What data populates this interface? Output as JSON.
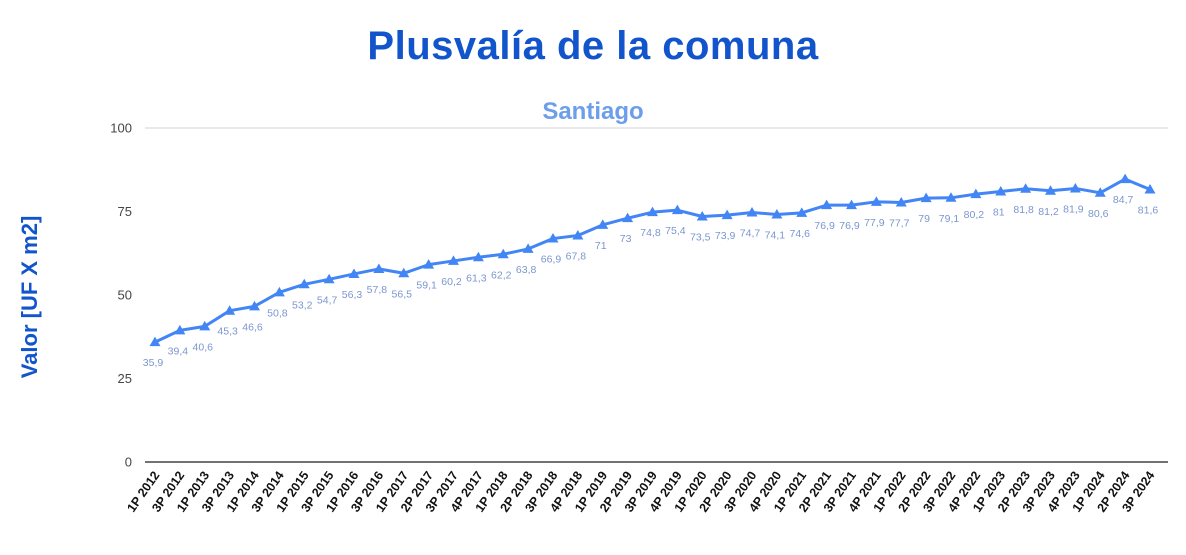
{
  "chart_data": {
    "type": "line",
    "title": "Plusvalía de la comuna",
    "subtitle": "Santiago",
    "xlabel": "",
    "ylabel": "Valor  [UF X m2]",
    "ylim": [
      0,
      100
    ],
    "yticks": [
      0,
      25,
      50,
      75,
      100
    ],
    "grid": "top-gridline-only",
    "legend": "none",
    "categories": [
      "1P 2012",
      "3P 2012",
      "1P 2013",
      "3P 2013",
      "1P 2014",
      "3P 2014",
      "1P 2015",
      "3P 2015",
      "1P 2016",
      "3P 2016",
      "1P 2017",
      "2P 2017",
      "3P 2017",
      "4P 2017",
      "1P 2018",
      "2P 2018",
      "3P 2018",
      "4P 2018",
      "1P 2019",
      "2P 2019",
      "3P 2019",
      "4P 2019",
      "1P 2020",
      "2P 2020",
      "3P 2020",
      "4P 2020",
      "1P 2021",
      "2P 2021",
      "3P 2021",
      "4P 2021",
      "1P 2022",
      "2P 2022",
      "3P 2022",
      "4P 2022",
      "1P 2023",
      "2P 2023",
      "3P 2023",
      "4P 2023",
      "1P 2024",
      "2P 2024",
      "3P 2024"
    ],
    "values": [
      35.9,
      39.4,
      40.6,
      45.3,
      46.6,
      50.8,
      53.2,
      54.7,
      56.3,
      57.8,
      56.5,
      59.1,
      60.2,
      61.3,
      62.2,
      63.8,
      66.9,
      67.8,
      71,
      73,
      74.8,
      75.4,
      73.5,
      73.9,
      74.7,
      74.1,
      74.6,
      76.9,
      76.9,
      77.9,
      77.7,
      79,
      79.1,
      80.2,
      81,
      81.8,
      81.2,
      81.9,
      80.6,
      84.7,
      81.6
    ],
    "point_labels": [
      "35,9",
      "39,4",
      "40,6",
      "45,3",
      "46,6",
      "50,8",
      "53,2",
      "54,7",
      "56,3",
      "57,8",
      "56,5",
      "59,1",
      "60,2",
      "61,3",
      "62,2",
      "63,8",
      "66,9",
      "67,8",
      "71",
      "73",
      "74,8",
      "75,4",
      "73,5",
      "73,9",
      "74,7",
      "74,1",
      "74,6",
      "76,9",
      "76,9",
      "77,9",
      "77,7",
      "79",
      "79,1",
      "80,2",
      "81",
      "81,8",
      "81,2",
      "81,9",
      "80,6",
      "84,7",
      "81,6"
    ],
    "colors": {
      "series": "#4285f4",
      "title": "#1254cb",
      "subtitle": "#6d9eeb",
      "point_label": "#7b96cf",
      "axis_tick_text": "#454545",
      "x_tick_text": "#111111",
      "gridline": "#e2e2e2",
      "axis_line": "#444444"
    }
  }
}
